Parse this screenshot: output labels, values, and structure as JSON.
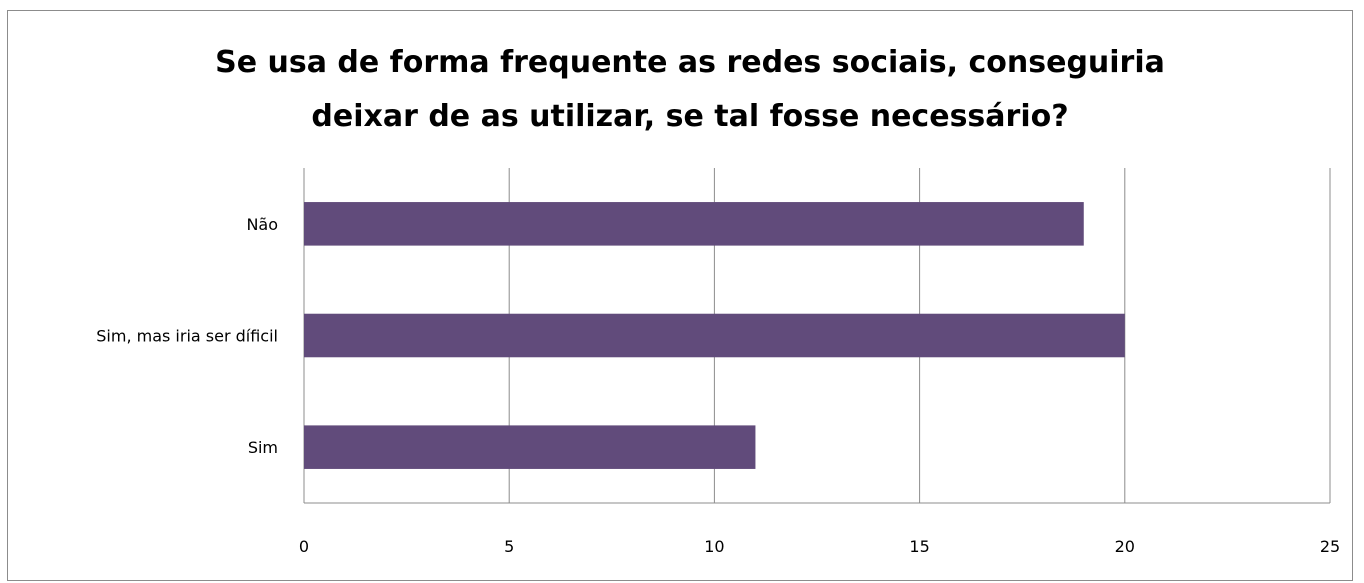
{
  "chart_data": {
    "type": "bar",
    "orientation": "horizontal",
    "title_lines": [
      "Se usa de forma frequente as redes sociais, conseguiria",
      "deixar de as utilizar, se tal fosse necessário?"
    ],
    "categories": [
      "Não",
      "Sim, mas iria ser díficil",
      "Sim"
    ],
    "values": [
      19,
      20,
      11
    ],
    "xlim": [
      0,
      25
    ],
    "xticks": [
      0,
      5,
      10,
      15,
      20,
      25
    ],
    "grid": "vertical",
    "legend": "none",
    "bar_color": "#614b7b",
    "gridline_color": "#8c8c8c"
  }
}
